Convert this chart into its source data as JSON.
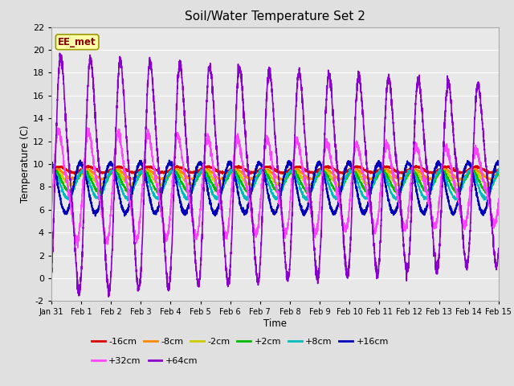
{
  "title": "Soil/Water Temperature Set 2",
  "xlabel": "Time",
  "ylabel": "Temperature (C)",
  "ylim": [
    -2,
    22
  ],
  "yticks": [
    -2,
    0,
    2,
    4,
    6,
    8,
    10,
    12,
    14,
    16,
    18,
    20,
    22
  ],
  "bg_color": "#e0e0e0",
  "plot_bg": "#e8e8e8",
  "annotation_text": "EE_met",
  "annotation_bg": "#ffffaa",
  "annotation_border": "#999900",
  "annotation_text_color": "#880000",
  "legend_row1": [
    "-16cm",
    "-8cm",
    "-2cm",
    "+2cm",
    "+8cm",
    "+16cm"
  ],
  "legend_row2": [
    "+32cm",
    "+64cm"
  ],
  "series_colors": {
    "-16cm": "#dd0000",
    "-8cm": "#ff8800",
    "-2cm": "#cccc00",
    "+2cm": "#00bb00",
    "+8cm": "#00bbbb",
    "+16cm": "#0000bb",
    "+32cm": "#ff44ff",
    "+64cm": "#8800cc"
  },
  "series_params": {
    "-16cm": {
      "base": 9.5,
      "amp": 0.25,
      "phase": 0.0
    },
    "-8cm": {
      "base": 9.1,
      "amp": 0.4,
      "phase": 0.05
    },
    "-2cm": {
      "base": 8.8,
      "amp": 0.6,
      "phase": 0.1
    },
    "+2cm": {
      "base": 8.5,
      "amp": 0.9,
      "phase": 0.15
    },
    "+8cm": {
      "base": 8.2,
      "amp": 1.2,
      "phase": 0.2
    },
    "+16cm": {
      "base": 7.9,
      "amp": 2.2,
      "phase": 0.27
    },
    "+32cm": {
      "base": 8.0,
      "amp": 4.5,
      "phase": -0.05
    },
    "+64cm": {
      "base": 9.0,
      "amp": 9.5,
      "phase": -0.12
    }
  },
  "xtick_labels": [
    "Jan 31",
    "Feb 1",
    "Feb 2",
    "Feb 3",
    "Feb 4",
    "Feb 5",
    "Feb 6",
    "Feb 7",
    "Feb 8",
    "Feb 9",
    "Feb 10",
    "Feb 11",
    "Feb 12",
    "Feb 13",
    "Feb 14",
    "Feb 15"
  ],
  "xtick_positions": [
    0,
    1,
    2,
    3,
    4,
    5,
    6,
    7,
    8,
    9,
    10,
    11,
    12,
    13,
    14,
    15
  ]
}
